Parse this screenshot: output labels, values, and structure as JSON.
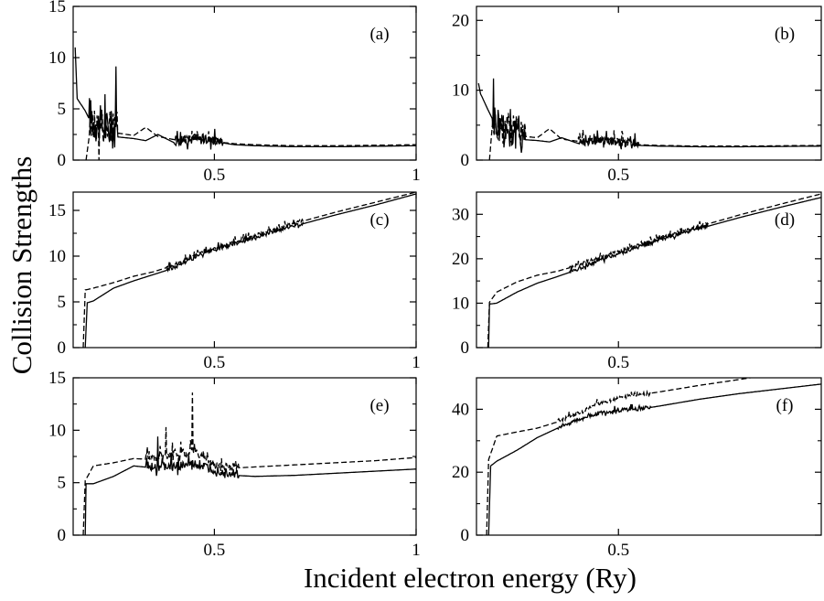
{
  "figure": {
    "ylabel": "Collision Strengths",
    "xlabel": "Incident electron energy (Ry)"
  },
  "chart_data": [
    {
      "type": "line",
      "panel": "(a)",
      "xlim": [
        0.15,
        1.0
      ],
      "ylim": [
        0,
        15
      ],
      "xticks": [
        0.5,
        1
      ],
      "xtick_labels": [
        "0.5",
        "1"
      ],
      "yticks": [
        0,
        5,
        10,
        15
      ],
      "ytick_labels": [
        "0",
        "5",
        "10",
        "15"
      ],
      "threshold": [
        0.155,
        0.182
      ],
      "series": [
        {
          "style": "solid",
          "values": [
            [
              0.155,
              11.0
            ],
            [
              0.16,
              6.0
            ],
            [
              0.18,
              4.8
            ],
            [
              0.2,
              3.2
            ],
            [
              0.22,
              2.8
            ],
            [
              0.25,
              2.3
            ],
            [
              0.3,
              2.1
            ],
            [
              0.33,
              1.9
            ],
            [
              0.36,
              2.5
            ],
            [
              0.4,
              1.7
            ],
            [
              0.45,
              1.9
            ],
            [
              0.5,
              1.8
            ],
            [
              0.55,
              1.5
            ],
            [
              0.6,
              1.4
            ],
            [
              0.7,
              1.3
            ],
            [
              0.8,
              1.3
            ],
            [
              0.9,
              1.35
            ],
            [
              1.0,
              1.4
            ]
          ]
        },
        {
          "style": "dashed",
          "values": [
            [
              0.182,
              0.0
            ],
            [
              0.19,
              3.2
            ],
            [
              0.2,
              3.0
            ],
            [
              0.22,
              2.9
            ],
            [
              0.25,
              2.7
            ],
            [
              0.3,
              2.4
            ],
            [
              0.33,
              3.2
            ],
            [
              0.36,
              2.3
            ],
            [
              0.4,
              2.0
            ],
            [
              0.45,
              2.1
            ],
            [
              0.5,
              1.8
            ],
            [
              0.55,
              1.6
            ],
            [
              0.6,
              1.5
            ],
            [
              0.7,
              1.4
            ],
            [
              0.8,
              1.4
            ],
            [
              0.9,
              1.45
            ],
            [
              1.0,
              1.5
            ]
          ]
        }
      ],
      "resonances": [
        {
          "range": [
            0.19,
            0.26
          ],
          "amp": 11,
          "base": 3.0
        },
        {
          "range": [
            0.4,
            0.52
          ],
          "amp": 2.5,
          "base": 1.8
        }
      ]
    },
    {
      "type": "line",
      "panel": "(b)",
      "xlim": [
        0.15,
        1.0
      ],
      "ylim": [
        0,
        22
      ],
      "xticks": [
        0.5
      ],
      "xtick_labels": [
        "0.5"
      ],
      "yticks": [
        0,
        10,
        20
      ],
      "ytick_labels": [
        "0",
        "10",
        "20"
      ],
      "threshold": [
        0.155,
        0.182
      ],
      "series": [
        {
          "style": "solid",
          "values": [
            [
              0.155,
              11.0
            ],
            [
              0.16,
              9.5
            ],
            [
              0.18,
              7.0
            ],
            [
              0.2,
              4.6
            ],
            [
              0.22,
              3.6
            ],
            [
              0.25,
              3.0
            ],
            [
              0.3,
              2.8
            ],
            [
              0.33,
              2.6
            ],
            [
              0.36,
              3.2
            ],
            [
              0.4,
              2.4
            ],
            [
              0.45,
              2.6
            ],
            [
              0.5,
              2.4
            ],
            [
              0.55,
              2.1
            ],
            [
              0.6,
              2.0
            ],
            [
              0.7,
              1.9
            ],
            [
              0.8,
              1.9
            ],
            [
              0.9,
              1.95
            ],
            [
              1.0,
              2.0
            ]
          ]
        },
        {
          "style": "dashed",
          "values": [
            [
              0.182,
              0.0
            ],
            [
              0.19,
              4.4
            ],
            [
              0.2,
              4.2
            ],
            [
              0.22,
              3.9
            ],
            [
              0.25,
              3.5
            ],
            [
              0.3,
              3.2
            ],
            [
              0.33,
              4.5
            ],
            [
              0.36,
              3.0
            ],
            [
              0.4,
              2.7
            ],
            [
              0.45,
              2.8
            ],
            [
              0.5,
              2.4
            ],
            [
              0.55,
              2.2
            ],
            [
              0.6,
              2.1
            ],
            [
              0.7,
              2.0
            ],
            [
              0.8,
              2.0
            ],
            [
              0.9,
              2.05
            ],
            [
              1.0,
              2.1
            ]
          ]
        }
      ],
      "resonances": [
        {
          "range": [
            0.19,
            0.27
          ],
          "amp": 16,
          "base": 4.0
        },
        {
          "range": [
            0.4,
            0.55
          ],
          "amp": 3.5,
          "base": 2.4
        }
      ]
    },
    {
      "type": "line",
      "panel": "(c)",
      "xlim": [
        0.15,
        1.0
      ],
      "ylim": [
        0,
        17
      ],
      "xticks": [
        0.5,
        1
      ],
      "xtick_labels": [
        "0.5",
        "1"
      ],
      "yticks": [
        0,
        5,
        10,
        15
      ],
      "ytick_labels": [
        "0",
        "5",
        "10",
        "15"
      ],
      "threshold": [
        0.18,
        0.175
      ],
      "series": [
        {
          "style": "solid",
          "values": [
            [
              0.18,
              0.0
            ],
            [
              0.185,
              4.9
            ],
            [
              0.2,
              5.1
            ],
            [
              0.25,
              6.5
            ],
            [
              0.3,
              7.3
            ],
            [
              0.35,
              8.0
            ],
            [
              0.4,
              8.7
            ],
            [
              0.45,
              9.8
            ],
            [
              0.5,
              10.6
            ],
            [
              0.55,
              11.3
            ],
            [
              0.6,
              12.0
            ],
            [
              0.7,
              13.3
            ],
            [
              0.8,
              14.5
            ],
            [
              0.9,
              15.6
            ],
            [
              1.0,
              16.8
            ]
          ]
        },
        {
          "style": "dashed",
          "values": [
            [
              0.175,
              0.0
            ],
            [
              0.18,
              6.3
            ],
            [
              0.2,
              6.5
            ],
            [
              0.25,
              7.1
            ],
            [
              0.3,
              7.8
            ],
            [
              0.35,
              8.3
            ],
            [
              0.4,
              9.0
            ],
            [
              0.45,
              10.0
            ],
            [
              0.5,
              10.8
            ],
            [
              0.55,
              11.5
            ],
            [
              0.6,
              12.2
            ],
            [
              0.7,
              13.6
            ],
            [
              0.8,
              14.8
            ],
            [
              0.9,
              15.9
            ],
            [
              1.0,
              17.0
            ]
          ]
        }
      ],
      "resonances": [
        {
          "range": [
            0.38,
            0.72
          ],
          "amp": 1.2,
          "base": 0.0
        }
      ]
    },
    {
      "type": "line",
      "panel": "(d)",
      "xlim": [
        0.15,
        1.0
      ],
      "ylim": [
        0,
        35
      ],
      "xticks": [
        0.5
      ],
      "xtick_labels": [
        "0.5"
      ],
      "yticks": [
        0,
        10,
        20,
        30
      ],
      "ytick_labels": [
        "0",
        "10",
        "20",
        "30"
      ],
      "threshold": [
        0.18,
        0.178
      ],
      "series": [
        {
          "style": "solid",
          "values": [
            [
              0.18,
              0.0
            ],
            [
              0.182,
              9.8
            ],
            [
              0.2,
              10.0
            ],
            [
              0.25,
              12.5
            ],
            [
              0.3,
              14.5
            ],
            [
              0.35,
              16.0
            ],
            [
              0.4,
              17.6
            ],
            [
              0.45,
              19.5
            ],
            [
              0.5,
              21.0
            ],
            [
              0.55,
              22.5
            ],
            [
              0.6,
              24.0
            ],
            [
              0.7,
              26.8
            ],
            [
              0.8,
              29.3
            ],
            [
              0.9,
              31.6
            ],
            [
              1.0,
              33.8
            ]
          ]
        },
        {
          "style": "dashed",
          "values": [
            [
              0.178,
              0.0
            ],
            [
              0.182,
              10.2
            ],
            [
              0.2,
              12.5
            ],
            [
              0.25,
              14.8
            ],
            [
              0.3,
              16.3
            ],
            [
              0.35,
              17.2
            ],
            [
              0.4,
              18.5
            ],
            [
              0.45,
              20.2
            ],
            [
              0.5,
              21.6
            ],
            [
              0.55,
              23.0
            ],
            [
              0.6,
              24.5
            ],
            [
              0.7,
              27.3
            ],
            [
              0.8,
              29.9
            ],
            [
              0.9,
              32.3
            ],
            [
              1.0,
              34.6
            ]
          ]
        }
      ],
      "resonances": [
        {
          "range": [
            0.38,
            0.72
          ],
          "amp": 2.3,
          "base": 0.0
        }
      ]
    },
    {
      "type": "line",
      "panel": "(e)",
      "xlim": [
        0.15,
        1.0
      ],
      "ylim": [
        0,
        15
      ],
      "xticks": [
        0.5,
        1
      ],
      "xtick_labels": [
        "0.5",
        "1"
      ],
      "yticks": [
        0,
        5,
        10,
        15
      ],
      "ytick_labels": [
        "0",
        "5",
        "10",
        "15"
      ],
      "threshold": [
        0.18,
        0.175
      ],
      "series": [
        {
          "style": "solid",
          "values": [
            [
              0.18,
              0.0
            ],
            [
              0.182,
              4.9
            ],
            [
              0.2,
              4.9
            ],
            [
              0.25,
              5.6
            ],
            [
              0.3,
              6.6
            ],
            [
              0.35,
              6.4
            ],
            [
              0.4,
              6.4
            ],
            [
              0.45,
              6.6
            ],
            [
              0.5,
              6.1
            ],
            [
              0.55,
              5.7
            ],
            [
              0.6,
              5.6
            ],
            [
              0.7,
              5.7
            ],
            [
              0.8,
              5.9
            ],
            [
              0.9,
              6.1
            ],
            [
              1.0,
              6.3
            ]
          ]
        },
        {
          "style": "dashed",
          "values": [
            [
              0.175,
              0.0
            ],
            [
              0.18,
              5.2
            ],
            [
              0.2,
              6.6
            ],
            [
              0.25,
              6.9
            ],
            [
              0.3,
              7.3
            ],
            [
              0.35,
              7.2
            ],
            [
              0.4,
              7.6
            ],
            [
              0.45,
              7.9
            ],
            [
              0.5,
              6.5
            ],
            [
              0.55,
              6.4
            ],
            [
              0.6,
              6.5
            ],
            [
              0.7,
              6.7
            ],
            [
              0.8,
              6.9
            ],
            [
              0.9,
              7.1
            ],
            [
              1.0,
              7.4
            ]
          ]
        }
      ],
      "resonances": [
        {
          "range": [
            0.33,
            0.56
          ],
          "amp": 2.5,
          "base": 0.0
        }
      ],
      "spikes": [
        {
          "x": 0.445,
          "y": 13.6,
          "series": 1
        },
        {
          "x": 0.38,
          "y": 10.3,
          "series": 1
        },
        {
          "x": 0.36,
          "y": 9.4,
          "series": 0
        }
      ]
    },
    {
      "type": "line",
      "panel": "(f)",
      "xlim": [
        0.15,
        1.0
      ],
      "ylim": [
        0,
        50
      ],
      "xticks": [
        0.5
      ],
      "xtick_labels": [
        "0.5"
      ],
      "yticks": [
        0,
        20,
        40
      ],
      "ytick_labels": [
        "0",
        "20",
        "40"
      ],
      "threshold": [
        0.18,
        0.175
      ],
      "series": [
        {
          "style": "solid",
          "values": [
            [
              0.18,
              0.0
            ],
            [
              0.185,
              22.0
            ],
            [
              0.2,
              23.5
            ],
            [
              0.25,
              27.0
            ],
            [
              0.3,
              31.0
            ],
            [
              0.35,
              34.0
            ],
            [
              0.4,
              36.5
            ],
            [
              0.45,
              38.5
            ],
            [
              0.5,
              39.5
            ],
            [
              0.55,
              40.0
            ],
            [
              0.6,
              41.0
            ],
            [
              0.7,
              43.2
            ],
            [
              0.8,
              45.0
            ],
            [
              0.9,
              46.5
            ],
            [
              1.0,
              48.0
            ]
          ]
        },
        {
          "style": "dashed",
          "values": [
            [
              0.175,
              0.0
            ],
            [
              0.18,
              24.0
            ],
            [
              0.2,
              31.5
            ],
            [
              0.25,
              32.8
            ],
            [
              0.3,
              34.0
            ],
            [
              0.35,
              36.0
            ],
            [
              0.4,
              38.5
            ],
            [
              0.45,
              41.5
            ],
            [
              0.5,
              43.5
            ],
            [
              0.55,
              44.5
            ],
            [
              0.6,
              45.5
            ],
            [
              0.7,
              47.6
            ],
            [
              0.8,
              49.5
            ],
            [
              0.85,
              50.5
            ]
          ]
        }
      ],
      "resonances": [
        {
          "range": [
            0.35,
            0.58
          ],
          "amp": 3.5,
          "base": 0.0
        }
      ]
    }
  ]
}
